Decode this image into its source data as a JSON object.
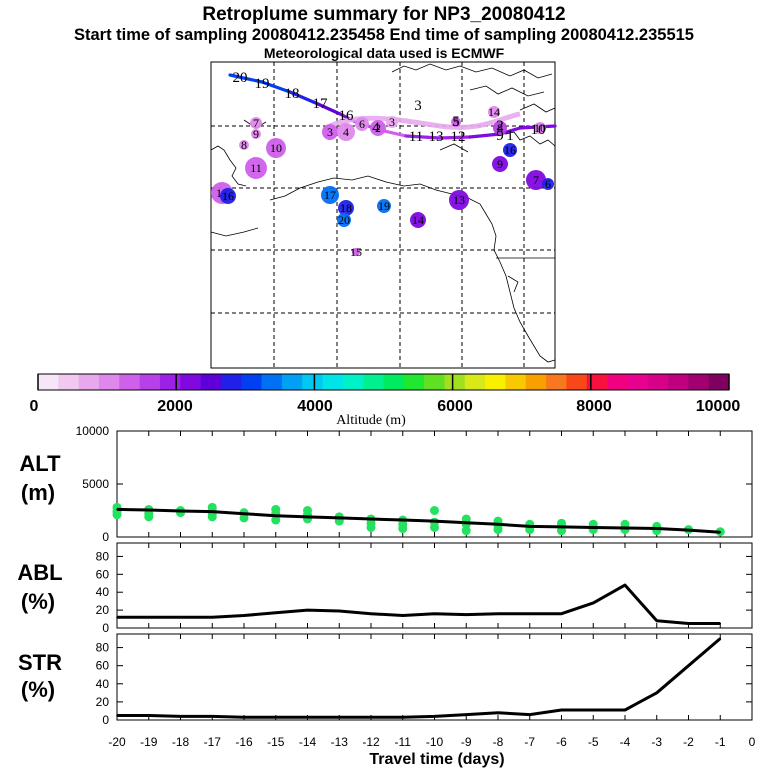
{
  "header": {
    "title": "Retroplume summary for NP3_20080412",
    "sampling": "Start time of sampling 20080412.235458     End time of sampling 20080412.235515",
    "met": "Meteorological data used is ECMWF"
  },
  "colorbar": {
    "label": "Altitude (m)",
    "ticks": [
      "0",
      "2000",
      "4000",
      "6000",
      "8000",
      "10000"
    ],
    "colors": [
      "#f7e6f7",
      "#f0c8f0",
      "#e8a8ee",
      "#df88ec",
      "#cf60ea",
      "#b840e8",
      "#9c20e6",
      "#8008e0",
      "#6000d8",
      "#2020e8",
      "#0040f0",
      "#0070f4",
      "#00a0f4",
      "#00c8f0",
      "#00e4e8",
      "#00f0c8",
      "#00f090",
      "#00ec60",
      "#20e830",
      "#60e020",
      "#a0e020",
      "#d8e818",
      "#f8f000",
      "#f8c800",
      "#f8a000",
      "#f87820",
      "#f84818",
      "#f81040",
      "#f00080",
      "#e80090",
      "#d80088",
      "#c00080",
      "#a00070",
      "#800060"
    ]
  },
  "map": {
    "trajectory_labels": [
      {
        "t": "20",
        "c": "#0040f0"
      },
      {
        "t": "19",
        "c": "#0040f0"
      },
      {
        "t": "18",
        "c": "#6000d8"
      },
      {
        "t": "17",
        "c": "#8008e0"
      },
      {
        "t": "16",
        "c": "#b840e8"
      },
      {
        "t": "5",
        "c": "#df88ec"
      },
      {
        "t": "4",
        "c": "#df88ec"
      },
      {
        "t": "3",
        "c": "#df88ec"
      },
      {
        "t": "2",
        "c": "#cf60ea"
      },
      {
        "t": "1",
        "c": "#cf60ea"
      },
      {
        "t": "11",
        "c": "#b840e8"
      },
      {
        "t": "13",
        "c": "#b840e8"
      },
      {
        "t": "12",
        "c": "#b840e8"
      },
      {
        "t": "9",
        "c": "#b840e8"
      },
      {
        "t": "10",
        "c": "#b840e8"
      }
    ],
    "cluster_labels": [
      {
        "t": "7",
        "c": "#df88ec"
      },
      {
        "t": "9",
        "c": "#df88ec"
      },
      {
        "t": "8",
        "c": "#df88ec"
      },
      {
        "t": "10",
        "c": "#cf60ea"
      },
      {
        "t": "11",
        "c": "#cf60ea"
      },
      {
        "t": "12",
        "c": "#cf60ea"
      },
      {
        "t": "16",
        "c": "#2020e8"
      },
      {
        "t": "17",
        "c": "#0070f4"
      },
      {
        "t": "18",
        "c": "#2020e8"
      },
      {
        "t": "20",
        "c": "#0070f4"
      },
      {
        "t": "19",
        "c": "#0070f4"
      },
      {
        "t": "14",
        "c": "#8008e0"
      },
      {
        "t": "13",
        "c": "#8008e0"
      },
      {
        "t": "15",
        "c": "#cf60ea"
      },
      {
        "t": "3",
        "c": "#cf60ea"
      },
      {
        "t": "4",
        "c": "#df88ec"
      },
      {
        "t": "6",
        "c": "#df88ec"
      },
      {
        "t": "2",
        "c": "#cf60ea"
      },
      {
        "t": "3",
        "c": "#e8a8ee"
      },
      {
        "t": "14",
        "c": "#df88ec"
      },
      {
        "t": "5",
        "c": "#cf60ea"
      },
      {
        "t": "8",
        "c": "#b840e8"
      },
      {
        "t": "16",
        "c": "#2020e8"
      },
      {
        "t": "9",
        "c": "#8008e0"
      },
      {
        "t": "7",
        "c": "#8008e0"
      },
      {
        "t": "6",
        "c": "#2020e8"
      },
      {
        "t": "10",
        "c": "#df88ec"
      }
    ]
  },
  "chart_data": [
    {
      "type": "line",
      "panel": "ALT",
      "ylabel_top": "ALT",
      "ylabel_bottom": "(m)",
      "x": [
        -20,
        -19,
        -18,
        -17,
        -16,
        -15,
        -14,
        -13,
        -12,
        -11,
        -10,
        -9,
        -8,
        -7,
        -6,
        -5,
        -4,
        -3,
        -2,
        -1
      ],
      "values": [
        2600,
        2550,
        2450,
        2400,
        2200,
        2000,
        1900,
        1800,
        1700,
        1600,
        1500,
        1350,
        1200,
        1000,
        950,
        900,
        850,
        800,
        650,
        450
      ],
      "scatter": {
        "color": "#22e25e",
        "x": [
          -20,
          -20,
          -20,
          -19,
          -19,
          -19,
          -18,
          -18,
          -17,
          -17,
          -17,
          -17,
          -16,
          -16,
          -15,
          -15,
          -15,
          -14,
          -14,
          -14,
          -13,
          -13,
          -12,
          -12,
          -12,
          -11,
          -11,
          -11,
          -10,
          -10,
          -10,
          -9,
          -9,
          -9,
          -8,
          -8,
          -8,
          -7,
          -7,
          -6,
          -6,
          -6,
          -5,
          -5,
          -4,
          -4,
          -3,
          -3,
          -2,
          -1
        ],
        "y": [
          2800,
          2400,
          2100,
          2600,
          2200,
          1900,
          2500,
          2300,
          2800,
          2500,
          2200,
          1900,
          2300,
          1800,
          2600,
          2200,
          1600,
          2500,
          2100,
          1700,
          1900,
          1500,
          1700,
          1300,
          900,
          1600,
          1200,
          800,
          2500,
          1400,
          900,
          1700,
          1200,
          600,
          1500,
          1100,
          700,
          1200,
          700,
          1300,
          1000,
          600,
          1200,
          700,
          1200,
          700,
          1000,
          600,
          700,
          500
        ]
      },
      "ylim": [
        0,
        10000
      ],
      "yticks": [
        "0",
        "5000",
        "10000"
      ]
    },
    {
      "type": "line",
      "panel": "ABL",
      "ylabel_top": "ABL",
      "ylabel_bottom": "(%)",
      "x": [
        -20,
        -19,
        -18,
        -17,
        -16,
        -15,
        -14,
        -13,
        -12,
        -11,
        -10,
        -9,
        -8,
        -7,
        -6,
        -5,
        -4,
        -3,
        -2,
        -1
      ],
      "values": [
        12,
        12,
        12,
        12,
        14,
        17,
        20,
        19,
        16,
        14,
        16,
        15,
        16,
        16,
        16,
        28,
        48,
        8,
        5,
        5
      ],
      "ylim": [
        0,
        95
      ],
      "yticks": [
        "0",
        "20",
        "40",
        "60",
        "80"
      ]
    },
    {
      "type": "line",
      "panel": "STR",
      "ylabel_top": "STR",
      "ylabel_bottom": "(%)",
      "x": [
        -20,
        -19,
        -18,
        -17,
        -16,
        -15,
        -14,
        -13,
        -12,
        -11,
        -10,
        -9,
        -8,
        -7,
        -6,
        -5,
        -4,
        -3,
        -2,
        -1
      ],
      "values": [
        5,
        5,
        4,
        4,
        3,
        3,
        3,
        3,
        3,
        3,
        4,
        6,
        8,
        6,
        11,
        11,
        11,
        30,
        60,
        90
      ],
      "ylim": [
        0,
        95
      ],
      "yticks": [
        "0",
        "20",
        "40",
        "60",
        "80"
      ],
      "xlabel": "Travel time (days)",
      "xticks": [
        "-20",
        "-19",
        "-18",
        "-17",
        "-16",
        "-15",
        "-14",
        "-13",
        "-12",
        "-11",
        "-10",
        "-9",
        "-8",
        "-7",
        "-6",
        "-5",
        "-4",
        "-3",
        "-2",
        "-1",
        "0"
      ]
    }
  ]
}
